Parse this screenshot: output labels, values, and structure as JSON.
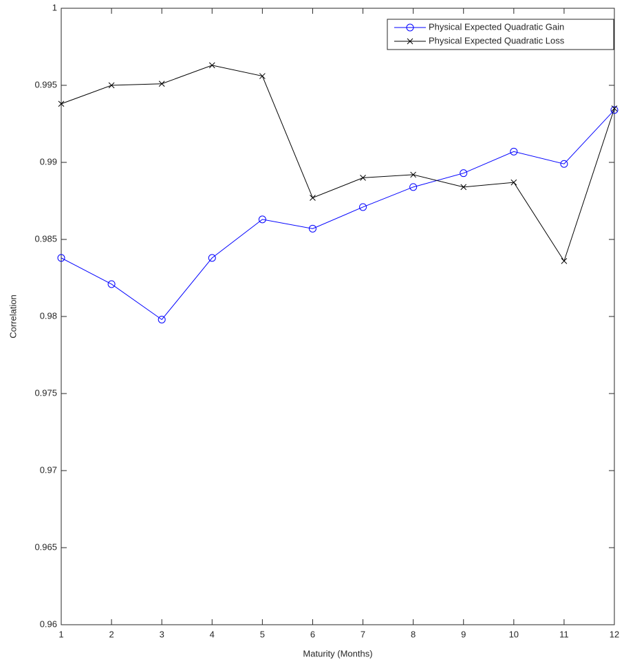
{
  "chart_data": {
    "type": "line",
    "x_label": "Maturity (Months)",
    "y_label": "Correlation",
    "x": [
      1,
      2,
      3,
      4,
      5,
      6,
      7,
      8,
      9,
      10,
      11,
      12
    ],
    "series": [
      {
        "name": "Physical Expected Quadratic Gain",
        "color": "#0000ff",
        "marker": "circle",
        "values": [
          0.9838,
          0.9821,
          0.9798,
          0.9838,
          0.9863,
          0.9857,
          0.9871,
          0.9884,
          0.9893,
          0.9907,
          0.9899,
          0.9934
        ]
      },
      {
        "name": "Physical Expected Quadratic Loss",
        "color": "#000000",
        "marker": "cross",
        "values": [
          0.9938,
          0.995,
          0.9951,
          0.9963,
          0.9956,
          0.9877,
          0.989,
          0.9892,
          0.9884,
          0.9887,
          0.9836,
          0.9935
        ]
      }
    ],
    "xlim": [
      1,
      12
    ],
    "xticks": [
      1,
      2,
      3,
      4,
      5,
      6,
      7,
      8,
      9,
      10,
      11,
      12
    ],
    "ylim": [
      0.96,
      1
    ],
    "yticks": [
      0.96,
      0.965,
      0.97,
      0.975,
      0.98,
      0.985,
      0.99,
      0.995,
      1
    ],
    "grid": false,
    "legend": "top-right"
  }
}
